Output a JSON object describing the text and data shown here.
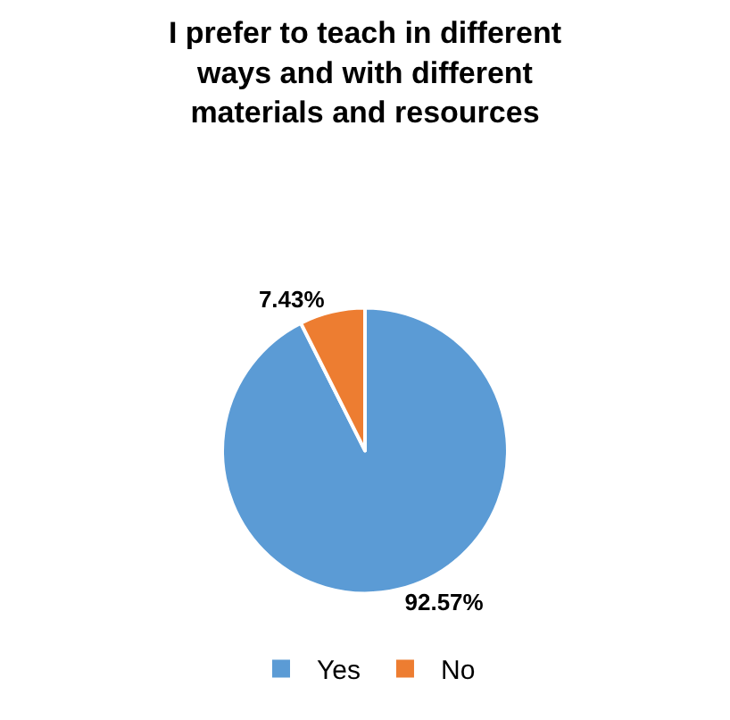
{
  "chart_data": {
    "type": "pie",
    "title": "I prefer to teach in different\nways and with different\nmaterials and resources",
    "categories": [
      "Yes",
      "No"
    ],
    "values": [
      92.57,
      7.43
    ],
    "colors": [
      "#5b9bd5",
      "#ed7d31"
    ],
    "value_labels": [
      "92.57%",
      "7.43%"
    ],
    "legend": "bottom"
  }
}
